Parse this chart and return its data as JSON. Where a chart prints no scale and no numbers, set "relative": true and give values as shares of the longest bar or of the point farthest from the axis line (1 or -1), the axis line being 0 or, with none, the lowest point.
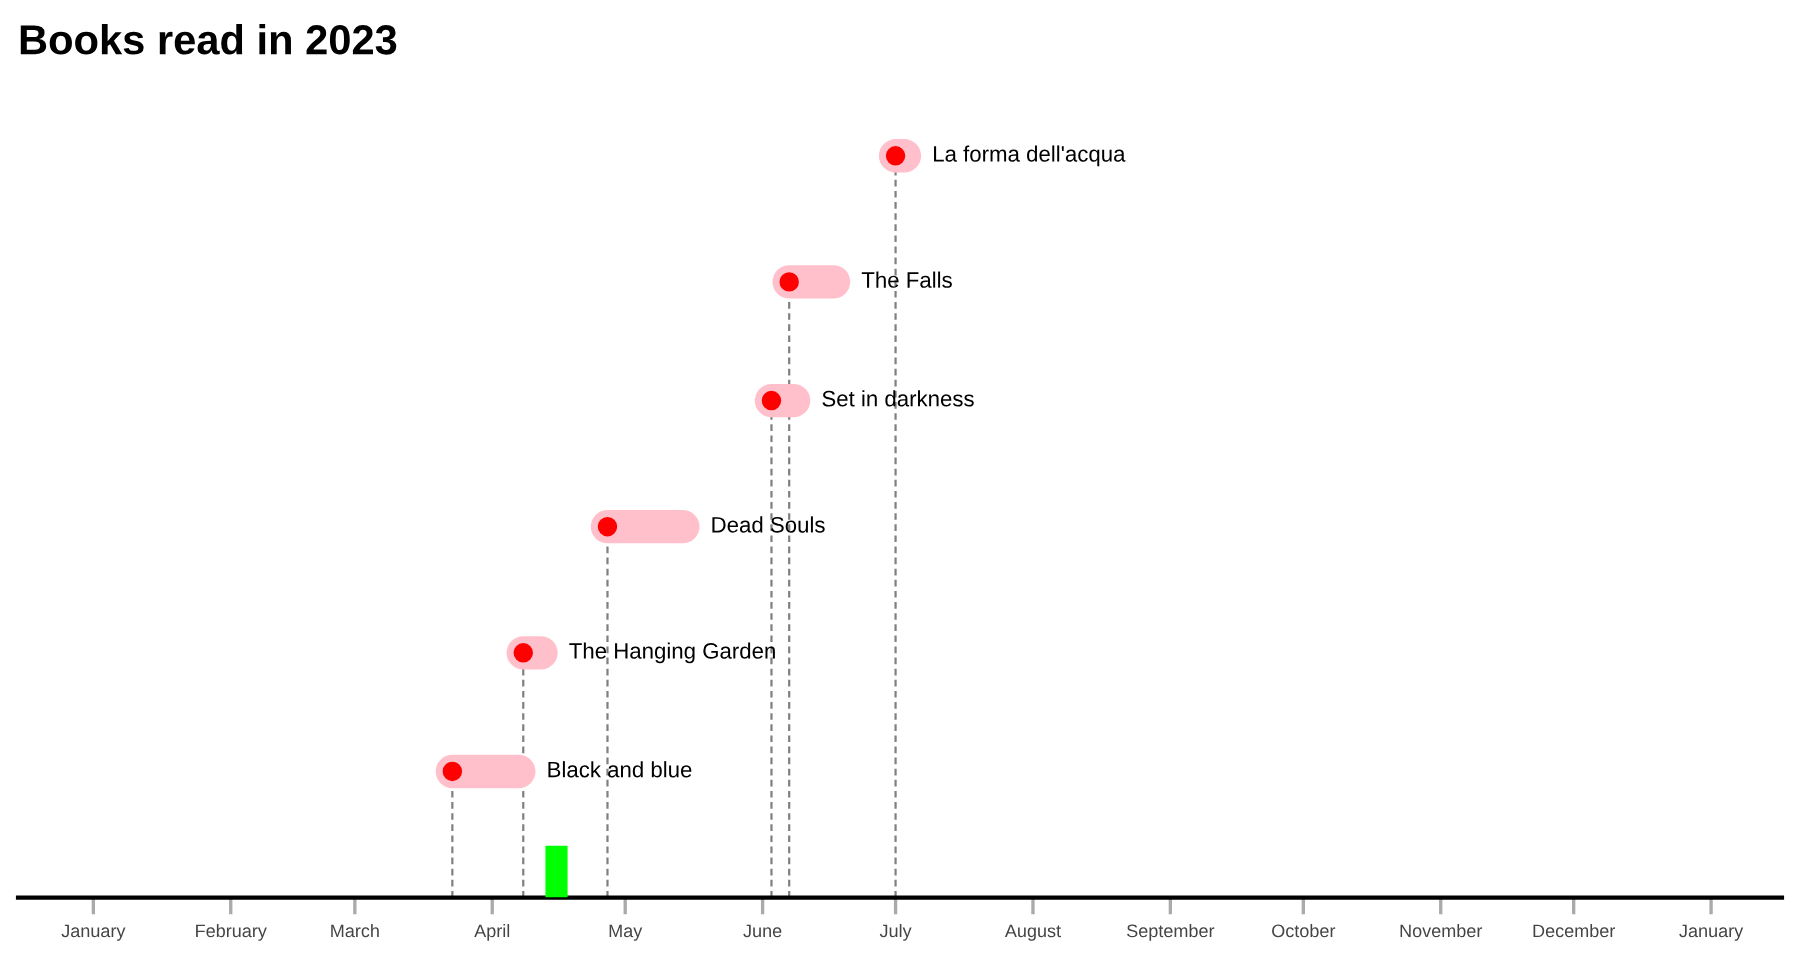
{
  "chart_data": {
    "type": "line",
    "relative": true,
    "title": "Books read in 2023",
    "series": [
      {
        "name": "Black and blue",
        "color": "#ffc0cb",
        "x": [
          "2023-03-23",
          "2023-04-07"
        ],
        "values": [
          0.17,
          0.17
        ]
      },
      {
        "name": "The Hanging Garden",
        "color": "#ffc0cb",
        "x": [
          "2023-04-08",
          "2023-04-12"
        ],
        "values": [
          0.33,
          0.33
        ]
      },
      {
        "name": "Dead Souls",
        "color": "#ffc0cb",
        "x": [
          "2023-04-27",
          "2023-05-14"
        ],
        "values": [
          0.5,
          0.5
        ]
      },
      {
        "name": "Set in darkness",
        "color": "#ffc0cb",
        "x": [
          "2023-06-03",
          "2023-06-08"
        ],
        "values": [
          0.67,
          0.67
        ]
      },
      {
        "name": "The Falls",
        "color": "#ffc0cb",
        "x": [
          "2023-06-07",
          "2023-06-17"
        ],
        "values": [
          0.83,
          0.83
        ]
      },
      {
        "name": "La forma dell'acqua",
        "color": "#ffc0cb",
        "x": [
          "2023-07-01",
          "2023-07-03"
        ],
        "values": [
          1,
          1
        ]
      },
      {
        "type": "scatter",
        "color": "#ff0000",
        "marker": "circle",
        "x": [
          "2023-03-23",
          "2023-04-08",
          "2023-04-27",
          "2023-06-03",
          "2023-06-07",
          "2023-07-01"
        ],
        "values": [
          0.17,
          0.33,
          0.5,
          0.67,
          0.83,
          1
        ]
      }
    ],
    "xlim": [
      "2022-12-15",
      "2024-01-17"
    ],
    "xticks": [
      {
        "value": "2023-01-01",
        "label": "January"
      },
      {
        "value": "2023-02-01",
        "label": "February"
      },
      {
        "value": "2023-03-01",
        "label": "March"
      },
      {
        "value": "2023-04-01",
        "label": "April"
      },
      {
        "value": "2023-05-01",
        "label": "May"
      },
      {
        "value": "2023-06-01",
        "label": "June"
      },
      {
        "value": "2023-07-01",
        "label": "July"
      },
      {
        "value": "2023-08-01",
        "label": "August"
      },
      {
        "value": "2023-09-01",
        "label": "September"
      },
      {
        "value": "2023-10-01",
        "label": "October"
      },
      {
        "value": "2023-11-01",
        "label": "November"
      },
      {
        "value": "2023-12-01",
        "label": "December"
      },
      {
        "value": "2024-01-01",
        "label": "January"
      }
    ],
    "ref_lines": [
      {
        "axis": "x",
        "value": "2023-07-01",
        "line_style": "dashed",
        "color": "#808080"
      },
      {
        "axis": "x",
        "value": "2023-06-07",
        "line_style": "dashed",
        "color": "#808080"
      },
      {
        "axis": "x",
        "value": "2023-06-03",
        "line_style": "dashed",
        "color": "#808080"
      },
      {
        "axis": "x",
        "value": "2023-04-27",
        "line_style": "dashed",
        "color": "#808080"
      },
      {
        "axis": "x",
        "value": "2023-04-08",
        "line_style": "dashed",
        "color": "#808080"
      },
      {
        "axis": "x",
        "value": "2023-03-23",
        "line_style": "dashed",
        "color": "#808080"
      }
    ],
    "bands": [
      {
        "axis": "x",
        "from": "2023-04-13",
        "to": "2023-04-18",
        "color": "#00ff00"
      }
    ],
    "tick_labels": "x",
    "grid": false
  }
}
